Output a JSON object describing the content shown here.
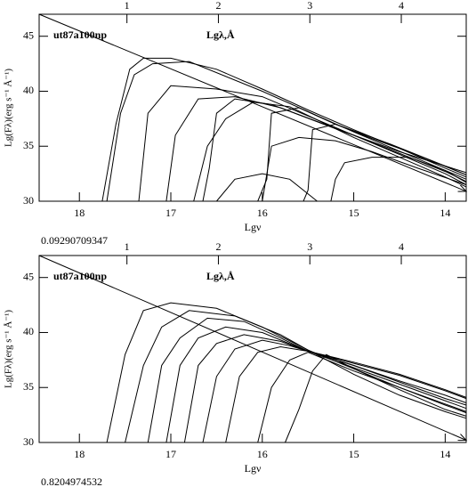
{
  "chart_data": [
    {
      "type": "line",
      "title": "ut87a100np",
      "annotation": "Lgλ,Å",
      "xlabel": "Lgν",
      "ylabel": "Lg(Fλ)(erg s⁻¹ Å⁻¹)",
      "footnote": "0.09290709347",
      "xlim": [
        18.44,
        13.77
      ],
      "xticks": [
        18,
        17,
        16,
        15,
        14
      ],
      "x2lim": [
        0.04,
        4.71
      ],
      "x2ticks": [
        1,
        2,
        3,
        4
      ],
      "ylim": [
        30,
        47
      ],
      "yticks": [
        30,
        35,
        40,
        45
      ],
      "color": "#000000",
      "series": [
        {
          "x": [
            18.44,
            13.77
          ],
          "values": [
            47,
            30.9
          ]
        },
        {
          "x": [
            17.75,
            17.6,
            17.45,
            17.3,
            17,
            16.5,
            16,
            15.5,
            15,
            14.5,
            14,
            13.77
          ],
          "values": [
            30,
            37,
            42,
            43,
            43,
            42,
            40.2,
            38.3,
            36.5,
            34.8,
            33,
            32.2
          ]
        },
        {
          "x": [
            17.7,
            17.55,
            17.4,
            17.2,
            16.8,
            16,
            15,
            14,
            13.77
          ],
          "values": [
            30,
            38,
            41.5,
            42.5,
            42.7,
            40,
            36.3,
            32.8,
            32
          ]
        },
        {
          "x": [
            17.35,
            17.25,
            17,
            16.5,
            16,
            15,
            14,
            13.77
          ],
          "values": [
            30,
            38,
            40.5,
            40.2,
            39.5,
            36,
            32.7,
            31.8
          ]
        },
        {
          "x": [
            17.05,
            16.95,
            16.7,
            16.3,
            15.8,
            15,
            14,
            13.77
          ],
          "values": [
            30,
            36,
            39.3,
            39.5,
            38.5,
            36,
            32.5,
            31.5
          ]
        },
        {
          "x": [
            16.75,
            16.6,
            16.4,
            16.1,
            15.7,
            15,
            14,
            13.77
          ],
          "values": [
            30,
            35,
            37.5,
            39,
            38.6,
            35.8,
            32.2,
            31.3
          ]
        },
        {
          "x": [
            16.65,
            16.58,
            16.5,
            16.3,
            15.9,
            15.2,
            14.5,
            13.77
          ],
          "values": [
            30,
            33,
            38,
            39.3,
            38.8,
            36.6,
            34.5,
            32.6
          ]
        },
        {
          "x": [
            16.05,
            15.95,
            15.9,
            15.6,
            15.2,
            14.6,
            14,
            13.77
          ],
          "values": [
            30,
            32,
            38,
            38.5,
            37,
            35.2,
            33.2,
            32.4
          ]
        },
        {
          "x": [
            16,
            15.9,
            15.6,
            15.2,
            14.8,
            14.3,
            13.77
          ],
          "values": [
            30,
            35,
            35.8,
            35.5,
            34.5,
            33,
            31.5
          ]
        },
        {
          "x": [
            15.55,
            15.5,
            15.45,
            15.2,
            14.8,
            14.4,
            13.77
          ],
          "values": [
            30,
            31,
            36.5,
            37,
            35.7,
            34.5,
            32.4
          ]
        },
        {
          "x": [
            15.25,
            15.2,
            15.1,
            14.8,
            14.4,
            14,
            13.77
          ],
          "values": [
            30,
            32,
            33.5,
            34,
            34,
            32.8,
            31.7
          ]
        },
        {
          "x": [
            16.5,
            16.3,
            16,
            15.7,
            15.4
          ],
          "values": [
            30,
            32,
            32.5,
            32,
            30
          ]
        }
      ]
    },
    {
      "type": "line",
      "title": "ut87a100np",
      "annotation": "Lgλ,Å",
      "xlabel": "Lgν",
      "ylabel": "Lg(Fλ)(erg s⁻¹ Å⁻¹)",
      "footnote": "0.8204974532",
      "xlim": [
        18.44,
        13.77
      ],
      "xticks": [
        18,
        17,
        16,
        15,
        14
      ],
      "x2lim": [
        0.04,
        4.71
      ],
      "x2ticks": [
        1,
        2,
        3,
        4
      ],
      "ylim": [
        30,
        47
      ],
      "yticks": [
        30,
        35,
        40,
        45
      ],
      "color": "#000000",
      "series": [
        {
          "x": [
            18.44,
            13.77
          ],
          "values": [
            47,
            30.2
          ]
        },
        {
          "x": [
            17.7,
            17.5,
            17.3,
            17,
            16.5,
            16,
            15.5,
            15,
            14.5,
            14,
            13.77
          ],
          "values": [
            30,
            38,
            42,
            42.7,
            42.2,
            40.5,
            38.4,
            36.2,
            34.3,
            32.8,
            32.2
          ]
        },
        {
          "x": [
            17.5,
            17.3,
            17.1,
            16.8,
            16.3,
            15.8,
            15.5,
            15,
            14.5,
            14,
            13.77
          ],
          "values": [
            30,
            37,
            40.5,
            42,
            41.5,
            39.8,
            38.4,
            36.7,
            35,
            33.5,
            32.8
          ]
        },
        {
          "x": [
            17.25,
            17.1,
            16.9,
            16.6,
            16.2,
            15.8,
            15.5,
            15,
            14.5,
            14,
            13.77
          ],
          "values": [
            30,
            37,
            39.5,
            41.3,
            41,
            39.5,
            38.3,
            37,
            35.6,
            34.3,
            33.6
          ]
        },
        {
          "x": [
            17.05,
            16.9,
            16.7,
            16.4,
            16,
            15.5,
            15,
            14.5,
            14,
            13.77
          ],
          "values": [
            30,
            37,
            39.5,
            40.5,
            40,
            38.3,
            37.2,
            36.1,
            34.7,
            34
          ]
        },
        {
          "x": [
            16.85,
            16.7,
            16.5,
            16.2,
            15.8,
            15.5,
            15,
            14.5,
            14,
            13.77
          ],
          "values": [
            30,
            37,
            39,
            39.8,
            39.2,
            38.3,
            37.3,
            36.2,
            34.8,
            34.1
          ]
        },
        {
          "x": [
            16.65,
            16.5,
            16.3,
            16,
            15.7,
            15.5,
            15,
            14.5,
            14,
            13.77
          ],
          "values": [
            30,
            36,
            38.5,
            39.3,
            38.8,
            38.3,
            37,
            35.5,
            34,
            33.4
          ]
        },
        {
          "x": [
            16.4,
            16.25,
            16.05,
            15.8,
            15.5,
            15,
            14.5,
            14,
            13.77
          ],
          "values": [
            30,
            36,
            38.2,
            38.7,
            38.3,
            36.8,
            35.3,
            33.8,
            33.1
          ]
        },
        {
          "x": [
            16.05,
            15.9,
            15.7,
            15.5,
            15,
            14.5,
            14,
            13.77
          ],
          "values": [
            30,
            35,
            37.5,
            38.2,
            36.5,
            35,
            33.4,
            32.7
          ]
        },
        {
          "x": [
            15.75,
            15.6,
            15.45,
            15.3,
            15,
            14.5,
            14,
            13.77
          ],
          "values": [
            30,
            33,
            36.5,
            38,
            36.7,
            34.8,
            33,
            32.4
          ]
        }
      ]
    }
  ]
}
